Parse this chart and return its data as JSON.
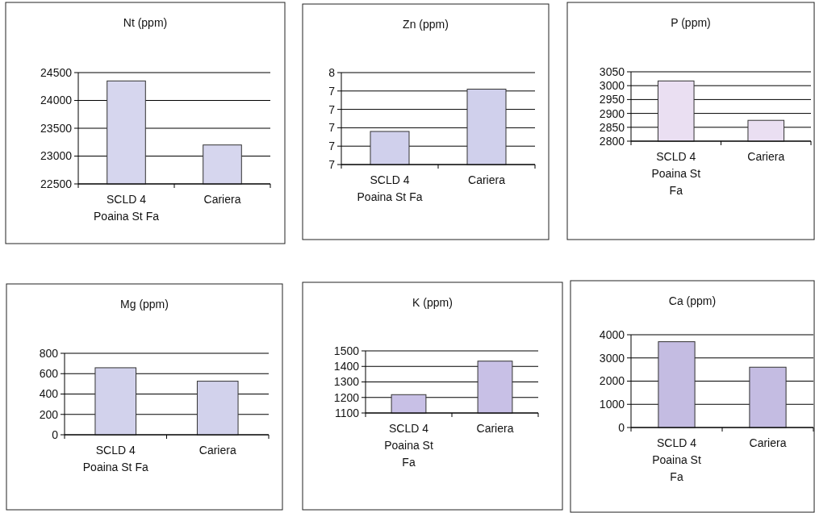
{
  "chart_data": [
    {
      "type": "bar",
      "title": "Nt (ppm)",
      "categories": [
        "SCLD 4 Poaina St Fa",
        "Cariera"
      ],
      "series": [
        {
          "color": "#d6d6ee",
          "values": [
            24350,
            23200
          ]
        }
      ],
      "ylim": [
        22500,
        24500
      ],
      "yticks": [
        22500,
        23000,
        23500,
        24000,
        24500
      ],
      "grid": "y",
      "legend": false
    },
    {
      "type": "bar",
      "title": "Zn (ppm)",
      "categories": [
        "SCLD 4 Poaina St Fa",
        "Cariera"
      ],
      "series": [
        {
          "color": "#d0d0ec",
          "values": [
            7.18,
            7.41
          ]
        }
      ],
      "ylim": [
        7.0,
        7.5
      ],
      "yticks": [
        {
          "value": 7.0,
          "label": "7"
        },
        {
          "value": 7.1,
          "label": "7"
        },
        {
          "value": 7.2,
          "label": "7"
        },
        {
          "value": 7.3,
          "label": "7"
        },
        {
          "value": 7.4,
          "label": "7"
        },
        {
          "value": 7.5,
          "label": "8"
        }
      ],
      "grid": "y",
      "legend": false
    },
    {
      "type": "bar",
      "title": "P (ppm)",
      "categories": [
        "SCLD 4 Poaina St Fa",
        "Cariera"
      ],
      "series": [
        {
          "color": "#eadff2",
          "values": [
            3017,
            2875
          ]
        }
      ],
      "ylim": [
        2800,
        3050
      ],
      "yticks": [
        2800,
        2850,
        2900,
        2950,
        3000,
        3050
      ],
      "grid": "y",
      "legend": false
    },
    {
      "type": "bar",
      "title": "Mg (ppm)",
      "categories": [
        "SCLD 4 Poaina St Fa",
        "Cariera"
      ],
      "series": [
        {
          "color": "#d2d2ec",
          "values": [
            658,
            526
          ]
        }
      ],
      "ylim": [
        0,
        800
      ],
      "yticks": [
        0,
        200,
        400,
        600,
        800
      ],
      "grid": "y",
      "legend": false
    },
    {
      "type": "bar",
      "title": "K (ppm)",
      "categories": [
        "SCLD 4 Poaina St Fa",
        "Cariera"
      ],
      "series": [
        {
          "color": "#c8c0e6",
          "values": [
            1218,
            1434
          ]
        }
      ],
      "ylim": [
        1100,
        1500
      ],
      "yticks": [
        1100,
        1200,
        1300,
        1400,
        1500
      ],
      "grid": "y",
      "legend": false
    },
    {
      "type": "bar",
      "title": "Ca (ppm)",
      "categories": [
        "SCLD 4 Poaina St Fa",
        "Cariera"
      ],
      "series": [
        {
          "color": "#c4bce2",
          "values": [
            3700,
            2600
          ]
        }
      ],
      "ylim": [
        0,
        4000
      ],
      "yticks": [
        0,
        1000,
        2000,
        3000,
        4000
      ],
      "grid": "y",
      "legend": false
    }
  ]
}
